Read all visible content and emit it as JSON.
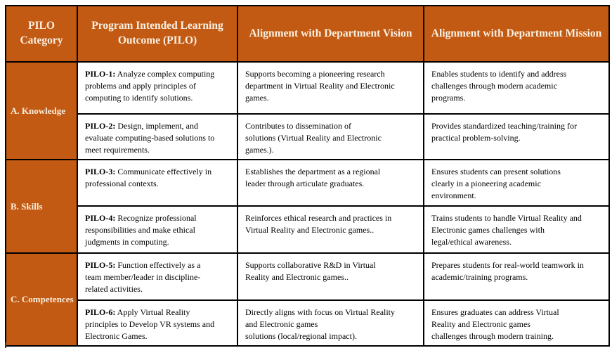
{
  "table": {
    "colors": {
      "header_bg": "#c35a14",
      "header_text": "#faf1e3",
      "border": "#000000",
      "body_text": "#000000"
    },
    "headers": {
      "category": "PILO Category",
      "pilo": "Program Intended Learning Outcome (PILO)",
      "vision": "Alignment with Department Vision",
      "mission": "Alignment with Department Mission"
    },
    "categories": [
      {
        "label": "A. Knowledge"
      },
      {
        "label": "B. Skills"
      },
      {
        "label": "C. Competences"
      }
    ],
    "rows": [
      {
        "pilo_label": "PILO-1:",
        "pilo_text": " Analyze complex computing\nproblems and apply principles of\ncomputing to identify solutions.",
        "vision": "Supports becoming a pioneering research\ndepartment in Virtual Reality and Electronic\ngames.",
        "mission": "Enables students to identify and address\nchallenges through modern academic\nprograms."
      },
      {
        "pilo_label": "PILO-2:",
        "pilo_text": " Design, implement, and\nevaluate computing-based solutions to\nmeet requirements.",
        "vision": "Contributes to dissemination of\nsolutions (Virtual Reality and Electronic\ngames.).",
        "mission": "Provides standardized teaching/training for\npractical problem-solving."
      },
      {
        "pilo_label": "PILO-3:",
        "pilo_text": " Communicate effectively in\nprofessional contexts.",
        "vision": "Establishes the department as a regional\nleader through articulate graduates.",
        "mission": "Ensures students can present solutions\nclearly in a pioneering academic\nenvironment."
      },
      {
        "pilo_label": "PILO-4:",
        "pilo_text": " Recognize professional\nresponsibilities and make ethical\njudgments in computing.",
        "vision": "Reinforces ethical research and practices in\nVirtual Reality and Electronic games..",
        "mission": "Trains students to handle Virtual Reality and\nElectronic games challenges with\nlegal/ethical awareness."
      },
      {
        "pilo_label": "PILO-5:",
        "pilo_text": " Function effectively as a\nteam member/leader in discipline-\nrelated activities.",
        "vision": "Supports collaborative R&D in Virtual\nReality and Electronic games..",
        "mission": "Prepares students for real-world teamwork in\nacademic/training programs."
      },
      {
        "pilo_label": "PILO-6:",
        "pilo_text": " Apply Virtual Reality\nprinciples  to Develop VR systems and\nElectronic Games.",
        "vision": "Directly aligns with focus on Virtual Reality\nand Electronic games\nsolutions (local/regional impact).",
        "mission": "Ensures graduates can address Virtual\nReality and Electronic games\nchallenges through modern training."
      }
    ]
  }
}
